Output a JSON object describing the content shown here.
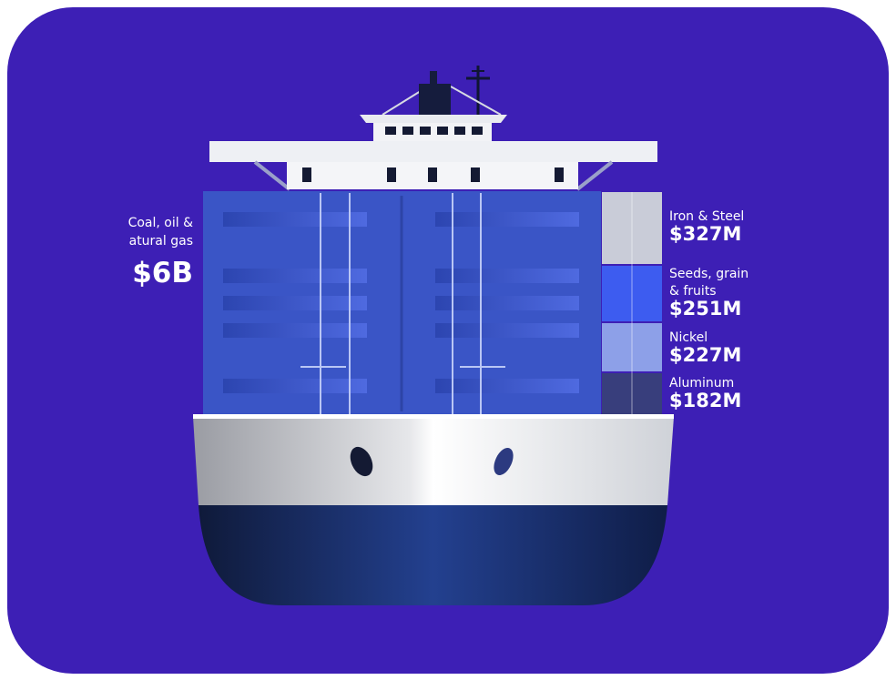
{
  "left_label": {
    "lines": [
      "Coal, oil &",
      "atural gas"
    ],
    "value": "$6B"
  },
  "right_labels": [
    {
      "lines": [
        "Iron & Steel"
      ],
      "value": "$327M"
    },
    {
      "lines": [
        "Seeds, grain",
        "& fruits"
      ],
      "value": "$251M"
    },
    {
      "lines": [
        "Nickel"
      ],
      "value": "$227M"
    },
    {
      "lines": [
        "Aluminum"
      ],
      "value": "$182M"
    }
  ]
}
